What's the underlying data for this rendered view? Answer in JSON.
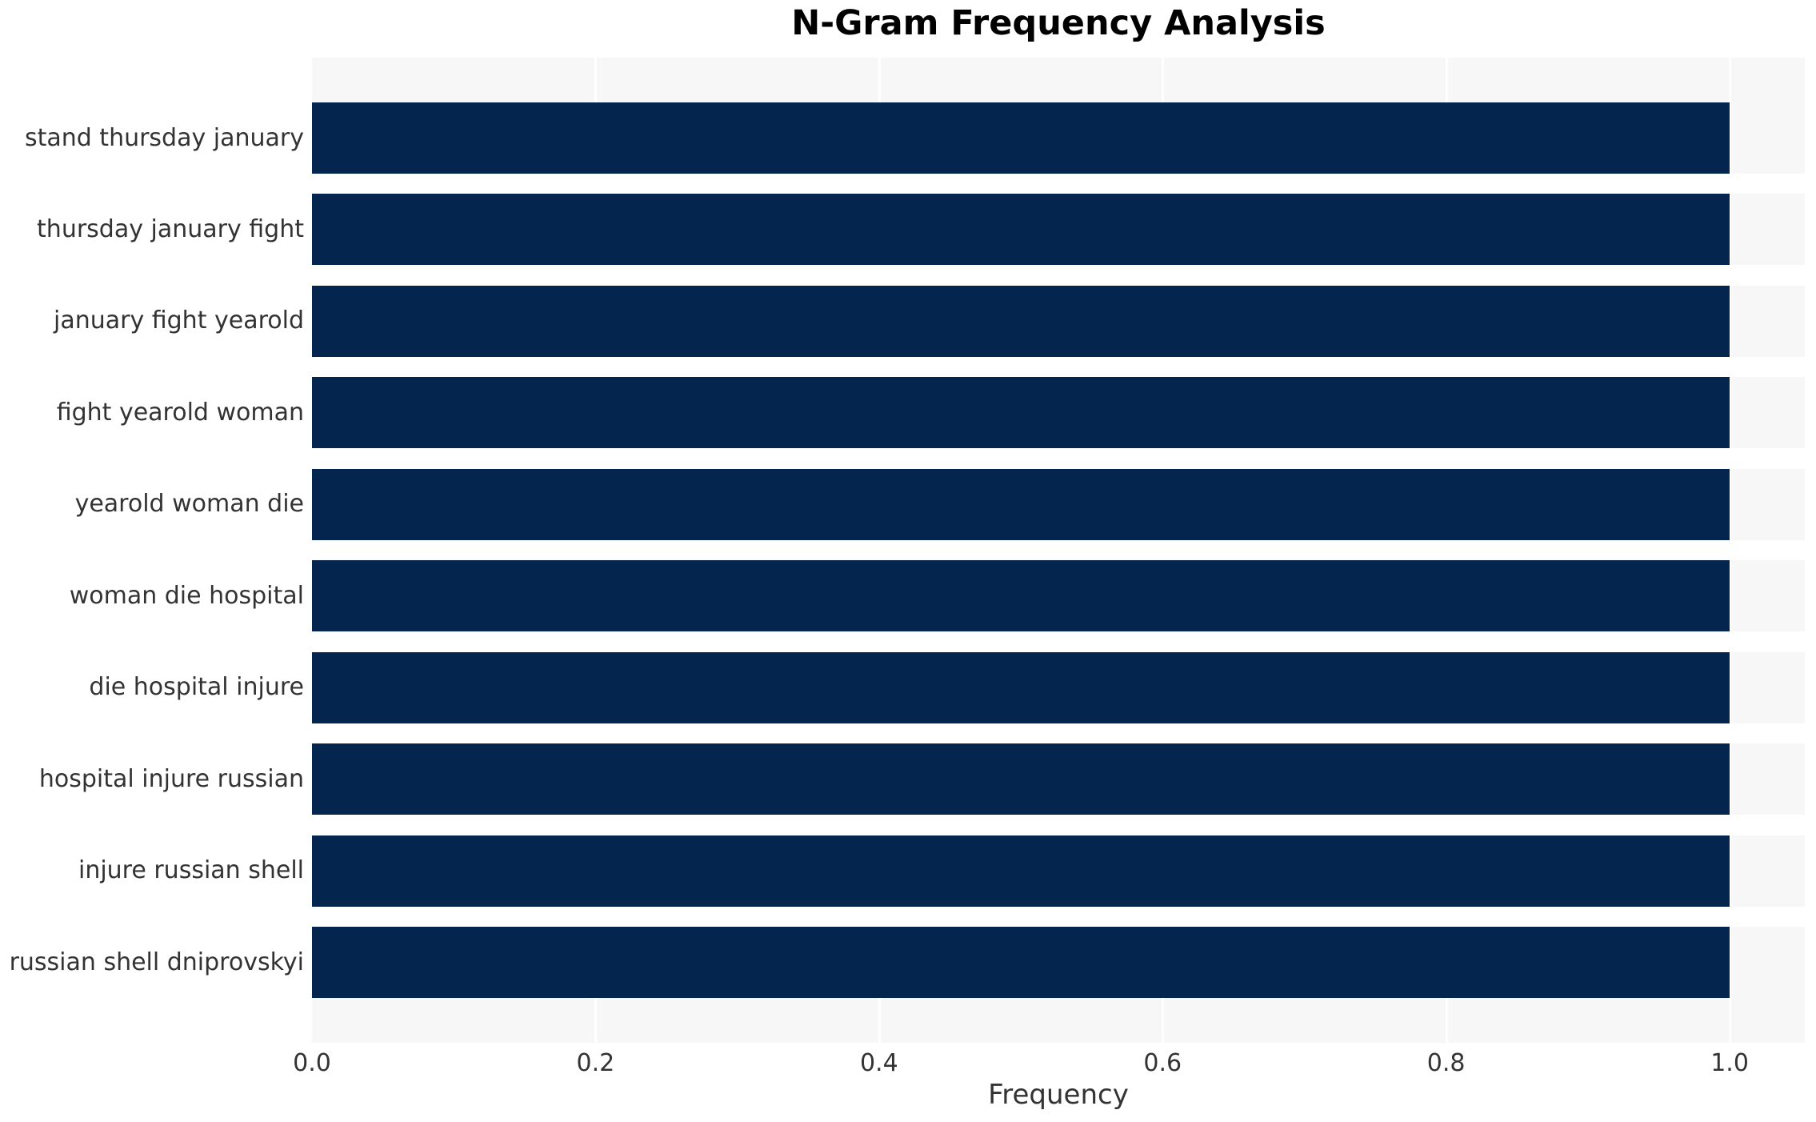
{
  "chart_data": {
    "type": "bar",
    "orientation": "horizontal",
    "title": "N-Gram Frequency Analysis",
    "xlabel": "Frequency",
    "ylabel": "",
    "categories": [
      "stand thursday january",
      "thursday january fight",
      "january fight yearold",
      "fight yearold woman",
      "yearold woman die",
      "woman die hospital",
      "die hospital injure",
      "hospital injure russian",
      "injure russian shell",
      "russian shell dniprovskyi"
    ],
    "values": [
      1.0,
      1.0,
      1.0,
      1.0,
      1.0,
      1.0,
      1.0,
      1.0,
      1.0,
      1.0
    ],
    "xticks": [
      0.0,
      0.2,
      0.4,
      0.6,
      0.8,
      1.0
    ],
    "xlim": [
      0,
      1.053
    ],
    "grid": true,
    "legend": "none",
    "colors": {
      "bar": "#03254e",
      "panel_background": "#f7f7f7",
      "gridline": "#ffffff",
      "bar_gap": "#ffffff",
      "tick_text": "#333333",
      "title_text": "#000000"
    }
  }
}
